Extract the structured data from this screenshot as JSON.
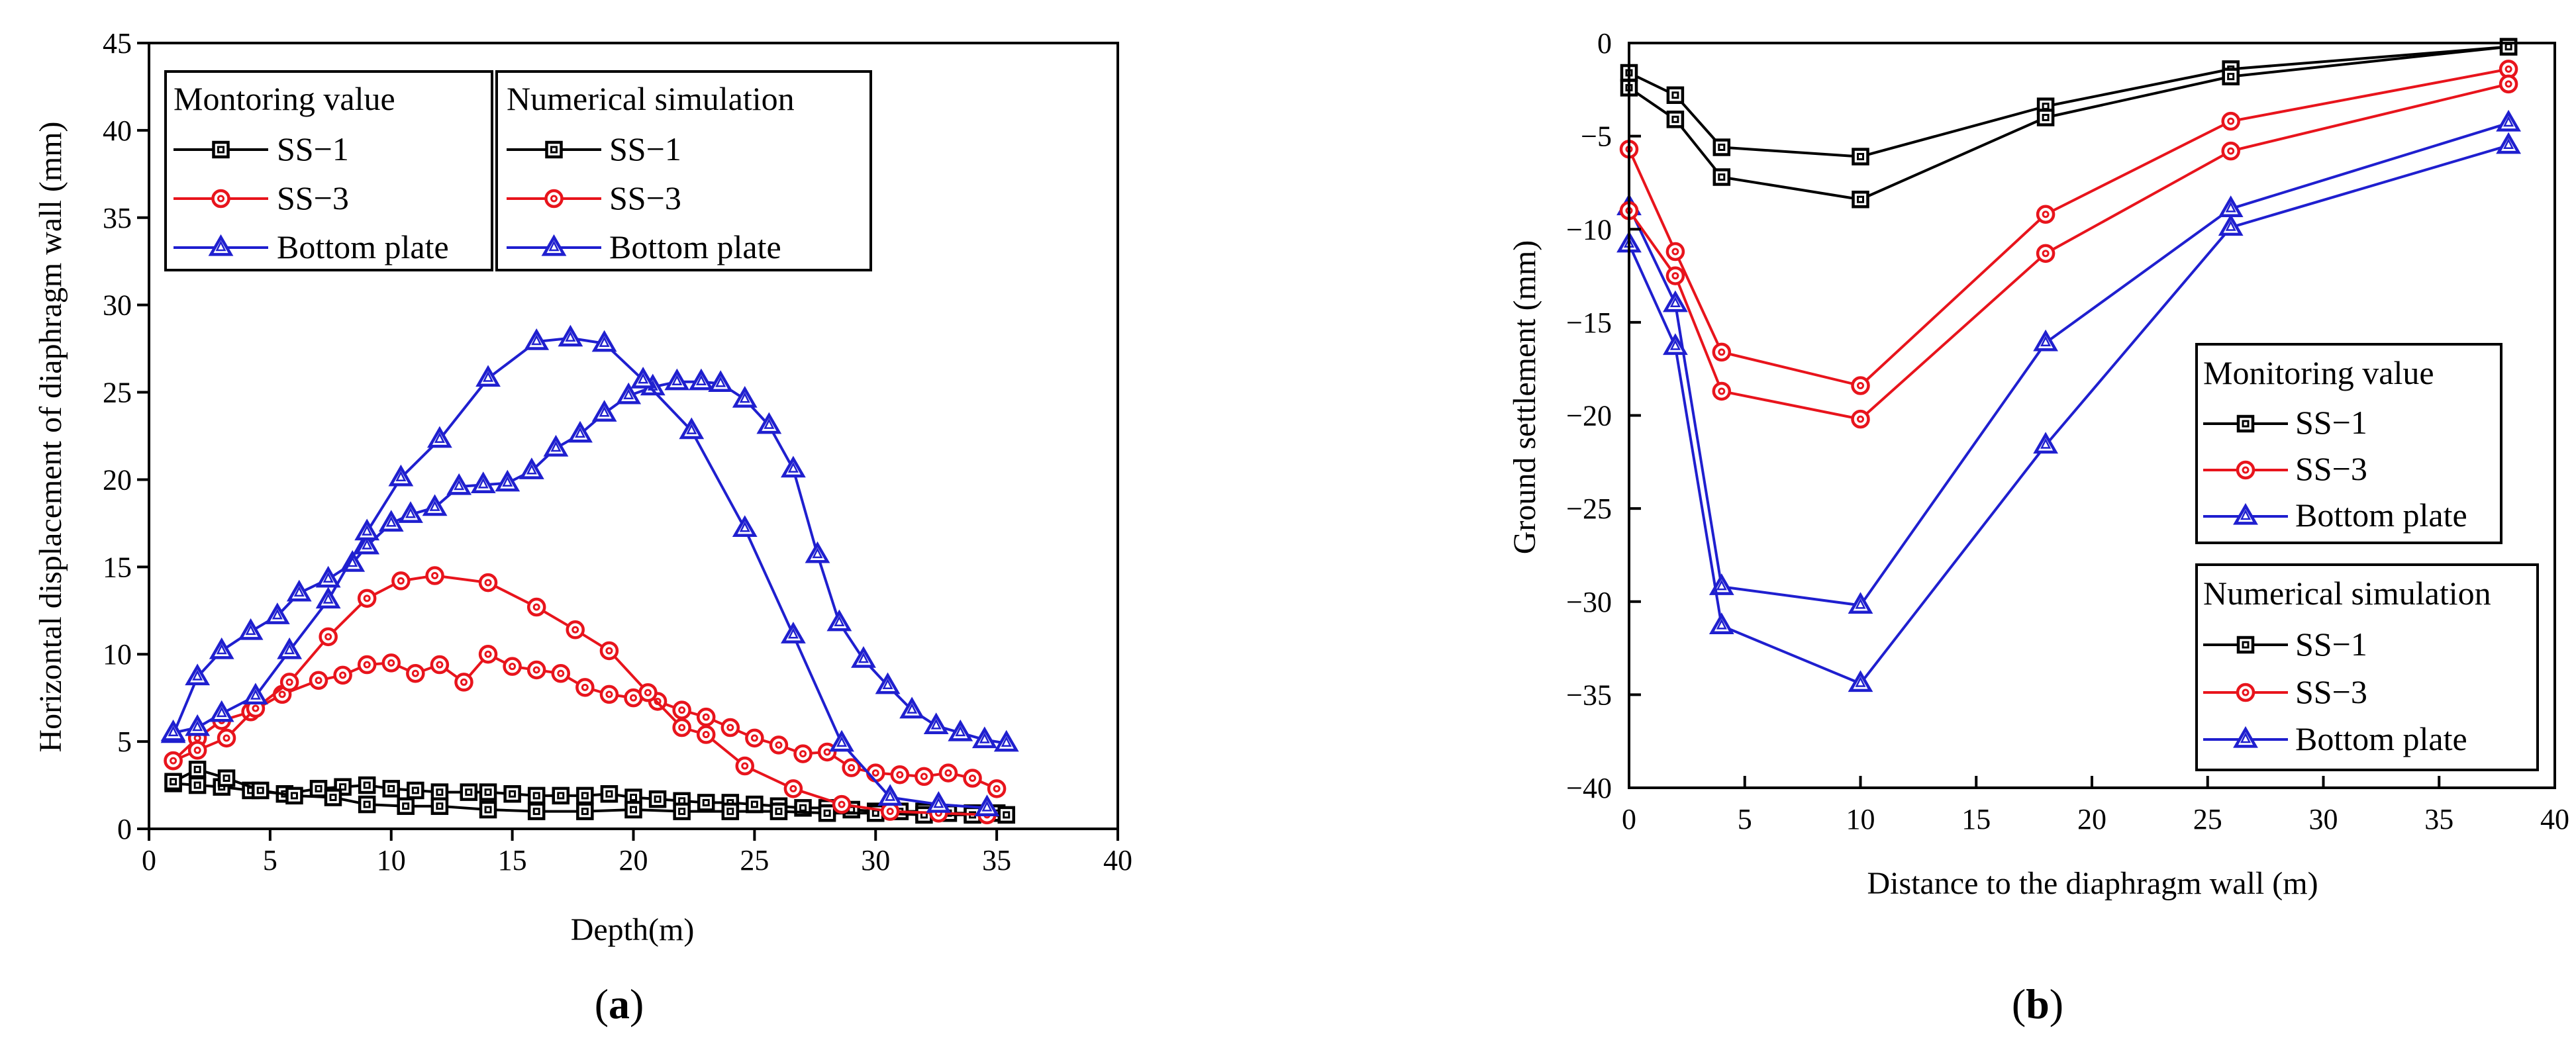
{
  "colors": {
    "SS-1": "#000000",
    "SS-3": "#e8141c",
    "Bottom plate": "#1f1fcf"
  },
  "chart_data": [
    {
      "id": "a",
      "type": "line",
      "panel_label": "(a)",
      "panel_letter": "a",
      "title": "",
      "xlabel": "Depth(m)",
      "ylabel": "Horizontal displacement of diaphragm wall (mm)",
      "xlim": [
        0,
        40
      ],
      "ylim": [
        0,
        45
      ],
      "xticks": [
        0,
        5,
        10,
        15,
        20,
        25,
        30,
        35,
        40
      ],
      "yticks": [
        0,
        5,
        10,
        15,
        20,
        25,
        30,
        35,
        40,
        45
      ],
      "xticks_text": [
        "0",
        "5",
        "10",
        "15",
        "20",
        "25",
        "30",
        "35",
        "40"
      ],
      "yticks_text": [
        "0",
        "5",
        "10",
        "15",
        "20",
        "25",
        "30",
        "35",
        "40",
        "45"
      ],
      "legend_placement": "top-left",
      "legend_groups": [
        {
          "title": "Montoring value",
          "items": [
            "SS−1",
            "SS−3",
            "Bottom plate"
          ]
        },
        {
          "title": "Numerical simulation",
          "items": [
            "SS−1",
            "SS−3",
            "Bottom plate"
          ]
        }
      ],
      "series": [
        {
          "group": "Montoring value",
          "name": "SS-1",
          "marker": "square",
          "x": [
            1,
            2,
            3,
            4.2,
            5.6,
            7,
            8,
            9,
            10,
            11,
            12,
            13.2,
            14,
            15,
            16,
            17,
            18,
            19,
            20,
            21,
            22,
            23,
            24,
            25,
            26,
            27,
            28,
            29,
            30,
            31,
            32,
            33,
            34,
            35
          ],
          "y": [
            2.6,
            2.5,
            2.4,
            2.2,
            2.0,
            2.3,
            2.4,
            2.5,
            2.3,
            2.2,
            2.1,
            2.1,
            2.1,
            2.0,
            1.9,
            1.9,
            1.9,
            2.0,
            1.8,
            1.7,
            1.6,
            1.5,
            1.5,
            1.4,
            1.3,
            1.2,
            1.2,
            1.1,
            1.0,
            1.0,
            1.0,
            0.9,
            0.9,
            0.9
          ]
        },
        {
          "group": "Montoring value",
          "name": "SS-3",
          "marker": "circle",
          "x": [
            1,
            2,
            3,
            4.2,
            5.5,
            7,
            8,
            9,
            10,
            11,
            12,
            13,
            14,
            15,
            16,
            17,
            18,
            19,
            20,
            21,
            22,
            23,
            24,
            25,
            26,
            27,
            28,
            29,
            30,
            31,
            32,
            33,
            34,
            35
          ],
          "y": [
            3.9,
            5.2,
            6.2,
            6.7,
            7.7,
            8.5,
            8.8,
            9.4,
            9.5,
            8.9,
            9.4,
            8.4,
            10.0,
            9.3,
            9.1,
            8.9,
            8.1,
            7.7,
            7.5,
            7.3,
            6.8,
            6.4,
            5.8,
            5.2,
            4.8,
            4.3,
            4.4,
            3.5,
            3.2,
            3.1,
            3.0,
            3.2,
            2.9,
            2.3
          ]
        },
        {
          "group": "Montoring value",
          "name": "Bottom plate",
          "marker": "triangle",
          "x": [
            1,
            2,
            3,
            4.2,
            5.3,
            6.2,
            7.4,
            8.4,
            9,
            10,
            10.8,
            11.8,
            12.8,
            13.8,
            14.8,
            15.8,
            16.8,
            17.8,
            18.8,
            19.8,
            20.8,
            21.8,
            22.8,
            23.6,
            24.6,
            25.6,
            26.6,
            27.6,
            28.5,
            29.5,
            30.5,
            31.5,
            32.5,
            33.5,
            34.5,
            35.4
          ],
          "y": [
            5.4,
            8.7,
            10.2,
            11.3,
            12.2,
            13.5,
            14.3,
            15.2,
            16.2,
            17.5,
            18.0,
            18.4,
            19.6,
            19.7,
            19.8,
            20.5,
            21.8,
            22.6,
            23.8,
            24.8,
            25.3,
            25.6,
            25.6,
            25.5,
            24.6,
            23.1,
            20.6,
            15.7,
            11.8,
            9.7,
            8.2,
            6.8,
            5.9,
            5.5,
            5.1,
            4.9
          ]
        },
        {
          "group": "Numerical simulation",
          "name": "SS-1",
          "marker": "square",
          "x": [
            1,
            2,
            3.2,
            4.6,
            6,
            7.6,
            9,
            10.6,
            12,
            14,
            16,
            18,
            20,
            22,
            24,
            26,
            28,
            30,
            32,
            34,
            35.4
          ],
          "y": [
            2.7,
            3.4,
            2.9,
            2.2,
            1.9,
            1.8,
            1.4,
            1.3,
            1.3,
            1.1,
            1.0,
            1.0,
            1.1,
            1.0,
            1.0,
            1.0,
            0.9,
            0.9,
            0.8,
            0.8,
            0.8
          ]
        },
        {
          "group": "Numerical simulation",
          "name": "SS-3",
          "marker": "circle",
          "x": [
            1,
            2,
            3.2,
            4.4,
            5.8,
            7.4,
            9,
            10.4,
            11.8,
            14,
            16,
            17.6,
            19,
            20.6,
            22,
            23,
            24.6,
            26.6,
            28.6,
            30.6,
            32.6,
            34.6
          ],
          "y": [
            3.9,
            4.5,
            5.2,
            6.9,
            8.4,
            11.0,
            13.2,
            14.2,
            14.5,
            14.1,
            12.7,
            11.4,
            10.2,
            7.8,
            5.8,
            5.4,
            3.6,
            2.3,
            1.4,
            1.0,
            0.9,
            0.8
          ]
        },
        {
          "group": "Numerical simulation",
          "name": "Bottom plate",
          "marker": "triangle",
          "x": [
            1,
            2,
            3,
            4.4,
            5.8,
            7.4,
            9,
            10.4,
            12,
            14,
            16,
            17.4,
            18.8,
            20.4,
            22.4,
            24.6,
            26.6,
            28.6,
            30.6,
            32.6,
            34.6
          ],
          "y": [
            5.5,
            5.8,
            6.6,
            7.6,
            10.2,
            13.1,
            17.0,
            20.1,
            22.3,
            25.8,
            27.9,
            28.1,
            27.8,
            25.7,
            22.8,
            17.2,
            11.1,
            4.9,
            1.8,
            1.4,
            1.2
          ]
        }
      ]
    },
    {
      "id": "b",
      "type": "line",
      "panel_label": "(b)",
      "panel_letter": "b",
      "title": "",
      "xlabel": "Distance to the diaphragm wall (m)",
      "ylabel": "Ground settlement (mm)",
      "xlim": [
        0,
        40
      ],
      "ylim": [
        -40,
        0
      ],
      "xticks": [
        0,
        5,
        10,
        15,
        20,
        25,
        30,
        35,
        40
      ],
      "yticks": [
        0,
        -5,
        -10,
        -15,
        -20,
        -25,
        -30,
        -35,
        -40
      ],
      "xticks_text": [
        "0",
        "5",
        "10",
        "15",
        "20",
        "25",
        "30",
        "35",
        "40"
      ],
      "yticks_text": [
        "0",
        "−5",
        "−10",
        "−15",
        "−20",
        "−25",
        "−30",
        "−35",
        "−40"
      ],
      "legend_placement": "right",
      "legend_groups": [
        {
          "title": "Monitoring value",
          "items": [
            "SS−1",
            "SS−3",
            "Bottom plate"
          ]
        },
        {
          "title": "Numerical simulation",
          "items": [
            "SS−1",
            "SS−3",
            "Bottom plate"
          ]
        }
      ],
      "series": [
        {
          "group": "Monitoring value",
          "name": "SS-1",
          "marker": "square",
          "x": [
            0,
            2,
            4,
            10,
            18,
            26,
            38
          ],
          "y": [
            -1.6,
            -2.8,
            -5.6,
            -6.1,
            -3.4,
            -1.4,
            -0.2
          ]
        },
        {
          "group": "Monitoring value",
          "name": "SS-3",
          "marker": "circle",
          "x": [
            0,
            2,
            4,
            10,
            18,
            26,
            38
          ],
          "y": [
            -5.7,
            -11.2,
            -16.6,
            -18.4,
            -9.2,
            -4.2,
            -1.4
          ]
        },
        {
          "group": "Monitoring value",
          "name": "Bottom plate",
          "marker": "triangle",
          "x": [
            0,
            2,
            4,
            10,
            18,
            26,
            38
          ],
          "y": [
            -8.8,
            -14.0,
            -29.2,
            -30.2,
            -16.1,
            -8.9,
            -4.3
          ]
        },
        {
          "group": "Numerical simulation",
          "name": "SS-1",
          "marker": "square",
          "x": [
            0,
            2,
            4,
            10,
            18,
            26,
            38
          ],
          "y": [
            -2.4,
            -4.1,
            -7.2,
            -8.4,
            -4.0,
            -1.8,
            -0.2
          ]
        },
        {
          "group": "Numerical simulation",
          "name": "SS-3",
          "marker": "circle",
          "x": [
            0,
            2,
            4,
            10,
            18,
            26,
            38
          ],
          "y": [
            -9.0,
            -12.5,
            -18.7,
            -20.2,
            -11.3,
            -5.8,
            -2.2
          ]
        },
        {
          "group": "Numerical simulation",
          "name": "Bottom plate",
          "marker": "triangle",
          "x": [
            0,
            2,
            4,
            10,
            18,
            26,
            38
          ],
          "y": [
            -10.8,
            -16.3,
            -31.3,
            -34.4,
            -21.6,
            -9.9,
            -5.5
          ]
        }
      ]
    }
  ]
}
